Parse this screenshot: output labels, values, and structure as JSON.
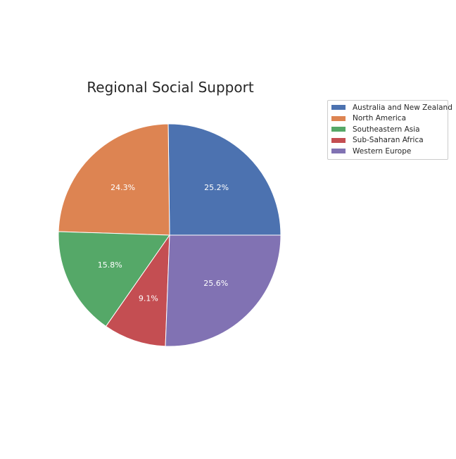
{
  "chart_data": {
    "type": "pie",
    "title": "Regional Social Support",
    "slices": [
      {
        "label": "Australia and New Zealand",
        "percent": 25.2,
        "display": "25.2%",
        "color": "#4c72b0"
      },
      {
        "label": "North America",
        "percent": 24.3,
        "display": "24.3%",
        "color": "#dd8452"
      },
      {
        "label": "Southeastern Asia",
        "percent": 15.8,
        "display": "15.8%",
        "color": "#55a868"
      },
      {
        "label": "Sub-Saharan Africa",
        "percent": 9.1,
        "display": "9.1%",
        "color": "#c44e52"
      },
      {
        "label": "Western Europe",
        "percent": 25.6,
        "display": "25.6%",
        "color": "#8172b3"
      }
    ],
    "start_angle_deg": 0,
    "direction": "counterclockwise",
    "legend_position": "upper-right-outside",
    "label_color": "#ffffff",
    "edge_color": "#ffffff"
  }
}
